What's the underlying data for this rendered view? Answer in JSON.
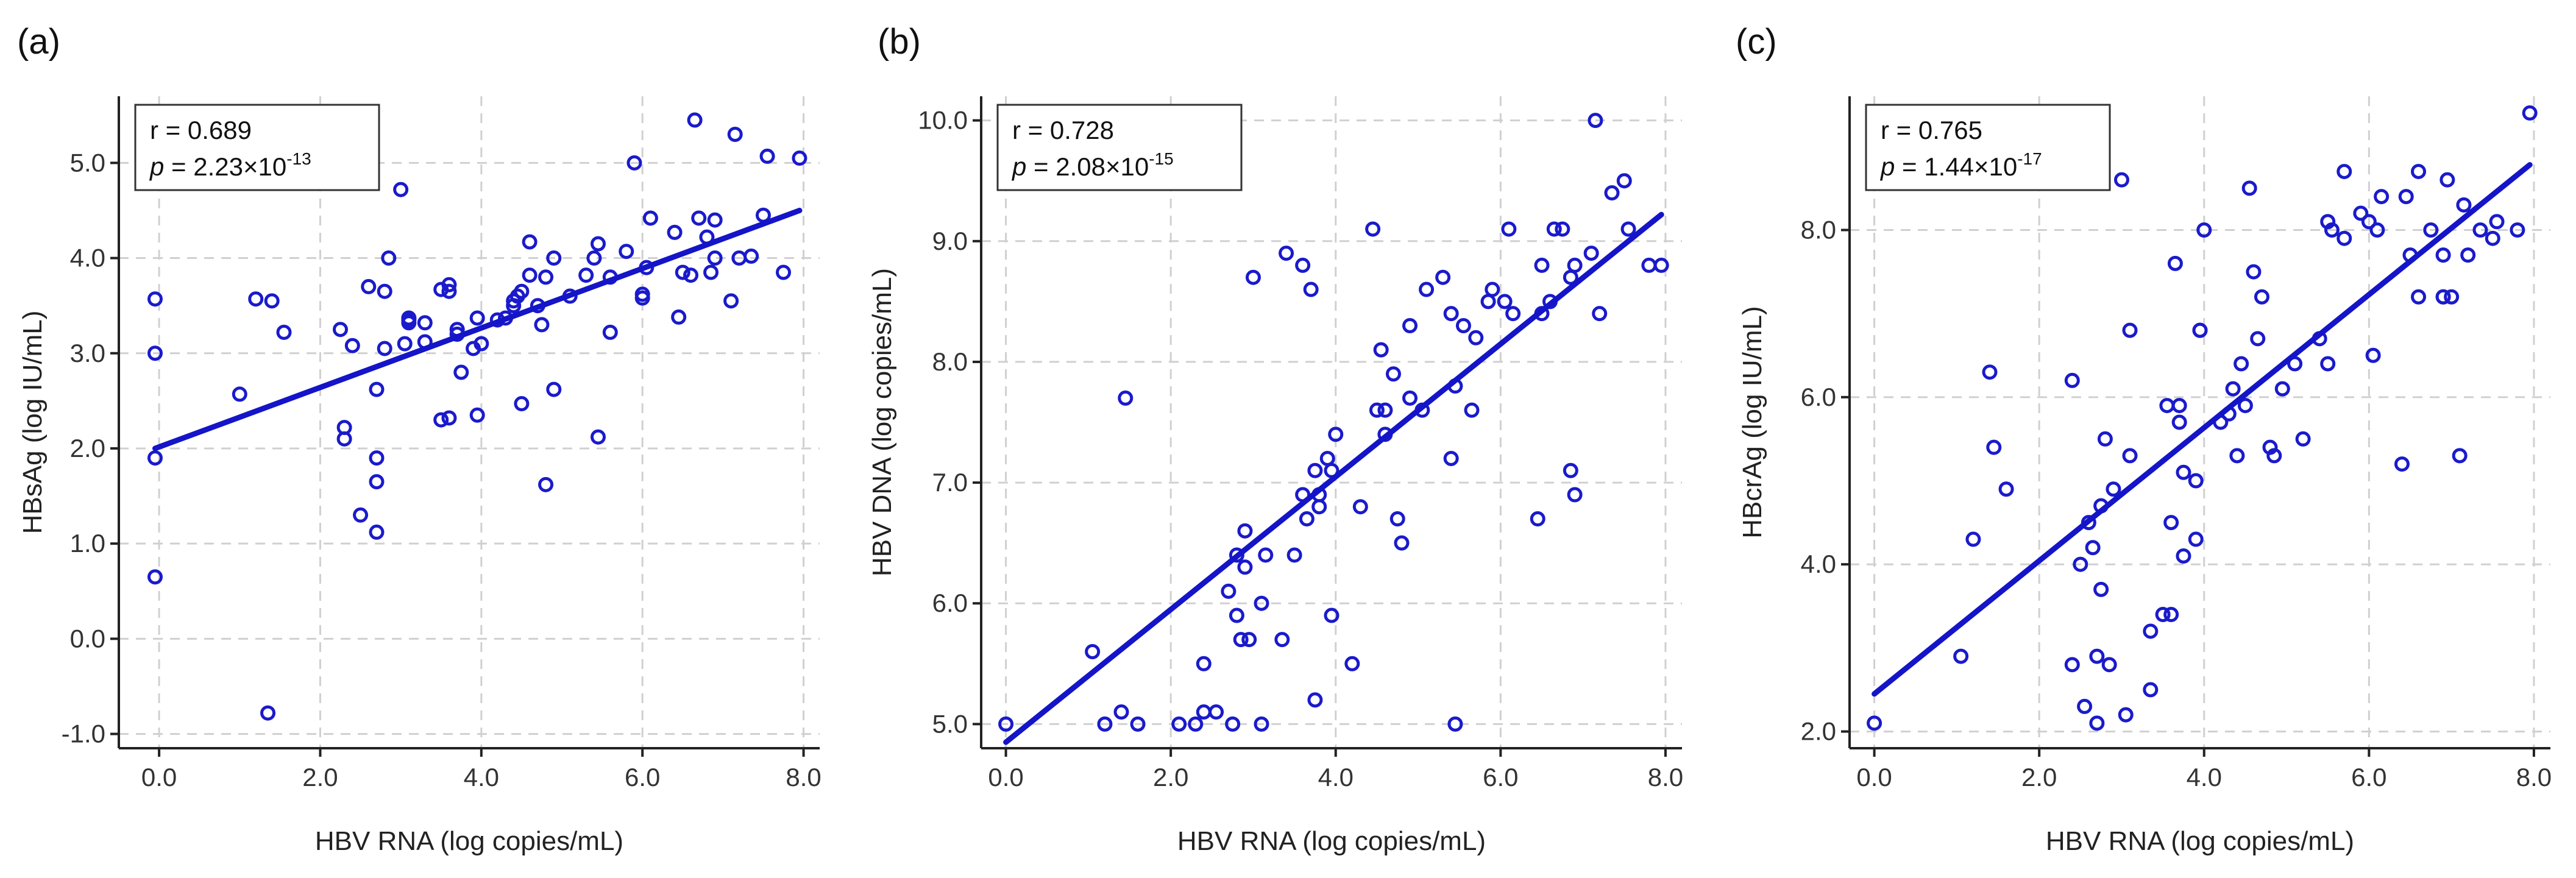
{
  "colors": {
    "point": "#1a1acc",
    "fit": "#1414c8"
  },
  "chart_data": [
    {
      "type": "scatter",
      "panel_label": "(a)",
      "xlabel": "HBV RNA (log copies/mL)",
      "ylabel": "HBsAg  (log IU/mL)",
      "xlim": [
        -0.5,
        8.2
      ],
      "ylim": [
        -1.15,
        5.7
      ],
      "xticks": [
        0,
        2,
        4,
        6,
        8
      ],
      "xtick_labels": [
        "0.0",
        "2.0",
        "4.0",
        "6.0",
        "8.0"
      ],
      "yticks": [
        -1,
        0,
        1,
        2,
        3,
        4,
        5
      ],
      "ytick_labels": [
        "-1.0",
        "0.0",
        "1.0",
        "2.0",
        "3.0",
        "4.0",
        "5.0"
      ],
      "stats": {
        "r_label": "r = 0.689",
        "p_prefix": "p",
        "p_text": " = 2.23",
        "p_times": "×",
        "p_base": "10",
        "p_exp": "-13"
      },
      "fit": {
        "x": [
          -0.05,
          7.95
        ],
        "y": [
          2.0,
          4.5
        ]
      },
      "points": [
        [
          -0.05,
          3.57
        ],
        [
          -0.05,
          3.0
        ],
        [
          -0.05,
          1.9
        ],
        [
          -0.05,
          0.65
        ],
        [
          1.0,
          2.57
        ],
        [
          1.2,
          3.57
        ],
        [
          1.4,
          3.55
        ],
        [
          1.35,
          -0.78
        ],
        [
          1.55,
          3.22
        ],
        [
          2.25,
          3.25
        ],
        [
          2.3,
          2.22
        ],
        [
          2.3,
          2.1
        ],
        [
          2.4,
          3.08
        ],
        [
          2.5,
          1.3
        ],
        [
          2.6,
          3.7
        ],
        [
          2.7,
          1.9
        ],
        [
          2.7,
          1.65
        ],
        [
          2.7,
          1.12
        ],
        [
          2.7,
          2.62
        ],
        [
          2.8,
          3.05
        ],
        [
          2.8,
          3.65
        ],
        [
          2.85,
          4.0
        ],
        [
          3.0,
          4.72
        ],
        [
          3.05,
          3.1
        ],
        [
          3.1,
          3.35
        ],
        [
          3.1,
          3.37
        ],
        [
          3.1,
          3.32
        ],
        [
          3.3,
          3.32
        ],
        [
          3.3,
          3.12
        ],
        [
          3.5,
          3.67
        ],
        [
          3.5,
          2.3
        ],
        [
          3.6,
          3.65
        ],
        [
          3.6,
          3.72
        ],
        [
          3.6,
          2.32
        ],
        [
          3.7,
          3.25
        ],
        [
          3.7,
          3.2
        ],
        [
          3.75,
          2.8
        ],
        [
          3.9,
          3.05
        ],
        [
          3.95,
          2.35
        ],
        [
          3.95,
          3.37
        ],
        [
          4.0,
          3.1
        ],
        [
          4.2,
          3.35
        ],
        [
          4.3,
          3.37
        ],
        [
          4.4,
          3.5
        ],
        [
          4.4,
          3.55
        ],
        [
          4.45,
          3.6
        ],
        [
          4.5,
          3.65
        ],
        [
          4.5,
          2.47
        ],
        [
          4.6,
          4.17
        ],
        [
          4.6,
          3.82
        ],
        [
          4.7,
          3.5
        ],
        [
          4.75,
          3.3
        ],
        [
          4.8,
          3.8
        ],
        [
          4.8,
          1.62
        ],
        [
          4.9,
          2.62
        ],
        [
          4.9,
          4.0
        ],
        [
          5.1,
          3.6
        ],
        [
          5.3,
          3.82
        ],
        [
          5.4,
          4.0
        ],
        [
          5.45,
          4.15
        ],
        [
          5.45,
          2.12
        ],
        [
          5.6,
          3.8
        ],
        [
          5.6,
          3.22
        ],
        [
          5.8,
          4.07
        ],
        [
          5.9,
          5.0
        ],
        [
          6.0,
          3.62
        ],
        [
          6.0,
          3.58
        ],
        [
          6.05,
          3.9
        ],
        [
          6.1,
          4.42
        ],
        [
          6.4,
          4.27
        ],
        [
          6.45,
          3.38
        ],
        [
          6.5,
          3.85
        ],
        [
          6.6,
          3.82
        ],
        [
          6.65,
          5.45
        ],
        [
          6.7,
          4.42
        ],
        [
          6.8,
          4.22
        ],
        [
          6.85,
          3.85
        ],
        [
          6.9,
          4.0
        ],
        [
          6.9,
          4.4
        ],
        [
          7.1,
          3.55
        ],
        [
          7.15,
          5.3
        ],
        [
          7.2,
          4.0
        ],
        [
          7.35,
          4.02
        ],
        [
          7.5,
          4.45
        ],
        [
          7.55,
          5.07
        ],
        [
          7.75,
          3.85
        ],
        [
          7.95,
          5.05
        ]
      ]
    },
    {
      "type": "scatter",
      "panel_label": "(b)",
      "xlabel": "HBV RNA (log copies/mL)",
      "ylabel": "HBV DNA  (log copies/mL)",
      "xlim": [
        -0.3,
        8.2
      ],
      "ylim": [
        4.8,
        10.2
      ],
      "xticks": [
        0,
        2,
        4,
        6,
        8
      ],
      "xtick_labels": [
        "0.0",
        "2.0",
        "4.0",
        "6.0",
        "8.0"
      ],
      "yticks": [
        5,
        6,
        7,
        8,
        9,
        10
      ],
      "ytick_labels": [
        "5.0",
        "6.0",
        "7.0",
        "8.0",
        "9.0",
        "10.0"
      ],
      "stats": {
        "r_label": "r = 0.728",
        "p_prefix": "p",
        "p_text": " = 2.08",
        "p_times": "×",
        "p_base": "10",
        "p_exp": "-15"
      },
      "fit": {
        "x": [
          0.0,
          7.95
        ],
        "y": [
          4.85,
          9.22
        ]
      },
      "points": [
        [
          0.0,
          5.0
        ],
        [
          1.05,
          5.6
        ],
        [
          1.2,
          5.0
        ],
        [
          1.4,
          5.1
        ],
        [
          1.45,
          7.7
        ],
        [
          1.6,
          5.0
        ],
        [
          2.1,
          5.0
        ],
        [
          2.3,
          5.0
        ],
        [
          2.4,
          5.1
        ],
        [
          2.4,
          5.5
        ],
        [
          2.55,
          5.1
        ],
        [
          2.7,
          6.1
        ],
        [
          2.75,
          5.0
        ],
        [
          2.8,
          6.4
        ],
        [
          2.8,
          5.9
        ],
        [
          2.85,
          5.7
        ],
        [
          2.9,
          6.3
        ],
        [
          2.9,
          6.6
        ],
        [
          2.95,
          5.7
        ],
        [
          3.0,
          8.7
        ],
        [
          3.1,
          5.0
        ],
        [
          3.1,
          6.0
        ],
        [
          3.15,
          6.4
        ],
        [
          3.35,
          5.7
        ],
        [
          3.4,
          8.9
        ],
        [
          3.5,
          6.4
        ],
        [
          3.6,
          8.8
        ],
        [
          3.6,
          6.9
        ],
        [
          3.65,
          6.7
        ],
        [
          3.7,
          8.6
        ],
        [
          3.75,
          7.1
        ],
        [
          3.75,
          5.2
        ],
        [
          3.8,
          6.8
        ],
        [
          3.8,
          6.9
        ],
        [
          3.9,
          7.2
        ],
        [
          3.95,
          5.9
        ],
        [
          3.95,
          7.1
        ],
        [
          4.0,
          7.4
        ],
        [
          4.2,
          5.5
        ],
        [
          4.3,
          6.8
        ],
        [
          4.45,
          9.1
        ],
        [
          4.5,
          7.6
        ],
        [
          4.55,
          8.1
        ],
        [
          4.6,
          7.4
        ],
        [
          4.6,
          7.6
        ],
        [
          4.7,
          7.9
        ],
        [
          4.75,
          6.7
        ],
        [
          4.8,
          6.5
        ],
        [
          4.9,
          7.7
        ],
        [
          4.9,
          8.3
        ],
        [
          5.05,
          7.6
        ],
        [
          5.1,
          8.6
        ],
        [
          5.3,
          8.7
        ],
        [
          5.4,
          8.4
        ],
        [
          5.4,
          7.2
        ],
        [
          5.45,
          5.0
        ],
        [
          5.45,
          7.8
        ],
        [
          5.55,
          8.3
        ],
        [
          5.65,
          7.6
        ],
        [
          5.7,
          8.2
        ],
        [
          5.85,
          8.5
        ],
        [
          5.9,
          8.6
        ],
        [
          6.05,
          8.5
        ],
        [
          6.1,
          9.1
        ],
        [
          6.15,
          8.4
        ],
        [
          6.45,
          6.7
        ],
        [
          6.5,
          8.8
        ],
        [
          6.5,
          8.4
        ],
        [
          6.6,
          8.5
        ],
        [
          6.65,
          9.1
        ],
        [
          6.75,
          9.1
        ],
        [
          6.85,
          7.1
        ],
        [
          6.85,
          8.7
        ],
        [
          6.9,
          8.8
        ],
        [
          6.9,
          6.9
        ],
        [
          7.1,
          8.9
        ],
        [
          7.15,
          10.0
        ],
        [
          7.2,
          8.4
        ],
        [
          7.35,
          9.4
        ],
        [
          7.5,
          9.5
        ],
        [
          7.55,
          9.1
        ],
        [
          7.8,
          8.8
        ],
        [
          7.95,
          8.8
        ]
      ]
    },
    {
      "type": "scatter",
      "panel_label": "(c)",
      "xlabel": "HBV RNA (log copies/mL)",
      "ylabel": "HBcrAg  (log IU/mL)",
      "xlim": [
        -0.3,
        8.2
      ],
      "ylim": [
        1.8,
        9.6
      ],
      "xticks": [
        0,
        2,
        4,
        6,
        8
      ],
      "xtick_labels": [
        "0.0",
        "2.0",
        "4.0",
        "6.0",
        "8.0"
      ],
      "yticks": [
        2,
        4,
        6,
        8
      ],
      "ytick_labels": [
        "2.0",
        "4.0",
        "6.0",
        "8.0"
      ],
      "stats": {
        "r_label": "r = 0.765",
        "p_prefix": "p",
        "p_text": " = 1.44",
        "p_times": "×",
        "p_base": "10",
        "p_exp": "-17"
      },
      "fit": {
        "x": [
          0.0,
          7.95
        ],
        "y": [
          2.45,
          8.78
        ]
      },
      "points": [
        [
          0.0,
          2.1
        ],
        [
          1.05,
          2.9
        ],
        [
          1.2,
          4.3
        ],
        [
          1.4,
          6.3
        ],
        [
          1.45,
          5.4
        ],
        [
          1.6,
          4.9
        ],
        [
          2.4,
          6.2
        ],
        [
          2.4,
          2.8
        ],
        [
          2.5,
          4.0
        ],
        [
          2.55,
          2.3
        ],
        [
          2.6,
          4.5
        ],
        [
          2.65,
          4.2
        ],
        [
          2.7,
          2.1
        ],
        [
          2.7,
          2.9
        ],
        [
          2.75,
          3.7
        ],
        [
          2.75,
          4.7
        ],
        [
          2.8,
          5.5
        ],
        [
          2.85,
          2.8
        ],
        [
          2.9,
          4.9
        ],
        [
          3.0,
          8.6
        ],
        [
          3.05,
          2.2
        ],
        [
          3.1,
          5.3
        ],
        [
          3.1,
          6.8
        ],
        [
          3.35,
          3.2
        ],
        [
          3.35,
          2.5
        ],
        [
          3.5,
          3.4
        ],
        [
          3.55,
          5.9
        ],
        [
          3.6,
          4.5
        ],
        [
          3.6,
          3.4
        ],
        [
          3.65,
          7.6
        ],
        [
          3.7,
          5.9
        ],
        [
          3.7,
          5.7
        ],
        [
          3.75,
          5.1
        ],
        [
          3.75,
          4.1
        ],
        [
          3.9,
          4.3
        ],
        [
          3.9,
          5.0
        ],
        [
          3.95,
          6.8
        ],
        [
          3.95,
          6.8
        ],
        [
          4.0,
          8.0
        ],
        [
          4.2,
          5.7
        ],
        [
          4.3,
          5.8
        ],
        [
          4.35,
          6.1
        ],
        [
          4.4,
          5.3
        ],
        [
          4.45,
          6.4
        ],
        [
          4.5,
          5.9
        ],
        [
          4.55,
          8.5
        ],
        [
          4.6,
          7.5
        ],
        [
          4.65,
          6.7
        ],
        [
          4.7,
          7.2
        ],
        [
          4.8,
          5.4
        ],
        [
          4.85,
          5.3
        ],
        [
          4.95,
          6.1
        ],
        [
          5.1,
          6.4
        ],
        [
          5.2,
          5.5
        ],
        [
          5.4,
          6.7
        ],
        [
          5.5,
          8.1
        ],
        [
          5.5,
          6.4
        ],
        [
          5.55,
          8.0
        ],
        [
          5.7,
          7.9
        ],
        [
          5.7,
          8.7
        ],
        [
          5.9,
          8.2
        ],
        [
          6.0,
          8.1
        ],
        [
          6.05,
          6.5
        ],
        [
          6.1,
          8.0
        ],
        [
          6.15,
          8.4
        ],
        [
          6.4,
          5.2
        ],
        [
          6.45,
          8.4
        ],
        [
          6.5,
          7.7
        ],
        [
          6.6,
          7.2
        ],
        [
          6.6,
          8.7
        ],
        [
          6.75,
          8.0
        ],
        [
          6.9,
          7.2
        ],
        [
          6.9,
          7.2
        ],
        [
          6.9,
          7.7
        ],
        [
          6.95,
          8.6
        ],
        [
          7.0,
          7.2
        ],
        [
          7.1,
          5.3
        ],
        [
          7.15,
          8.3
        ],
        [
          7.2,
          7.7
        ],
        [
          7.35,
          8.0
        ],
        [
          7.5,
          7.9
        ],
        [
          7.55,
          8.1
        ],
        [
          7.8,
          8.0
        ],
        [
          7.95,
          9.4
        ]
      ]
    }
  ]
}
